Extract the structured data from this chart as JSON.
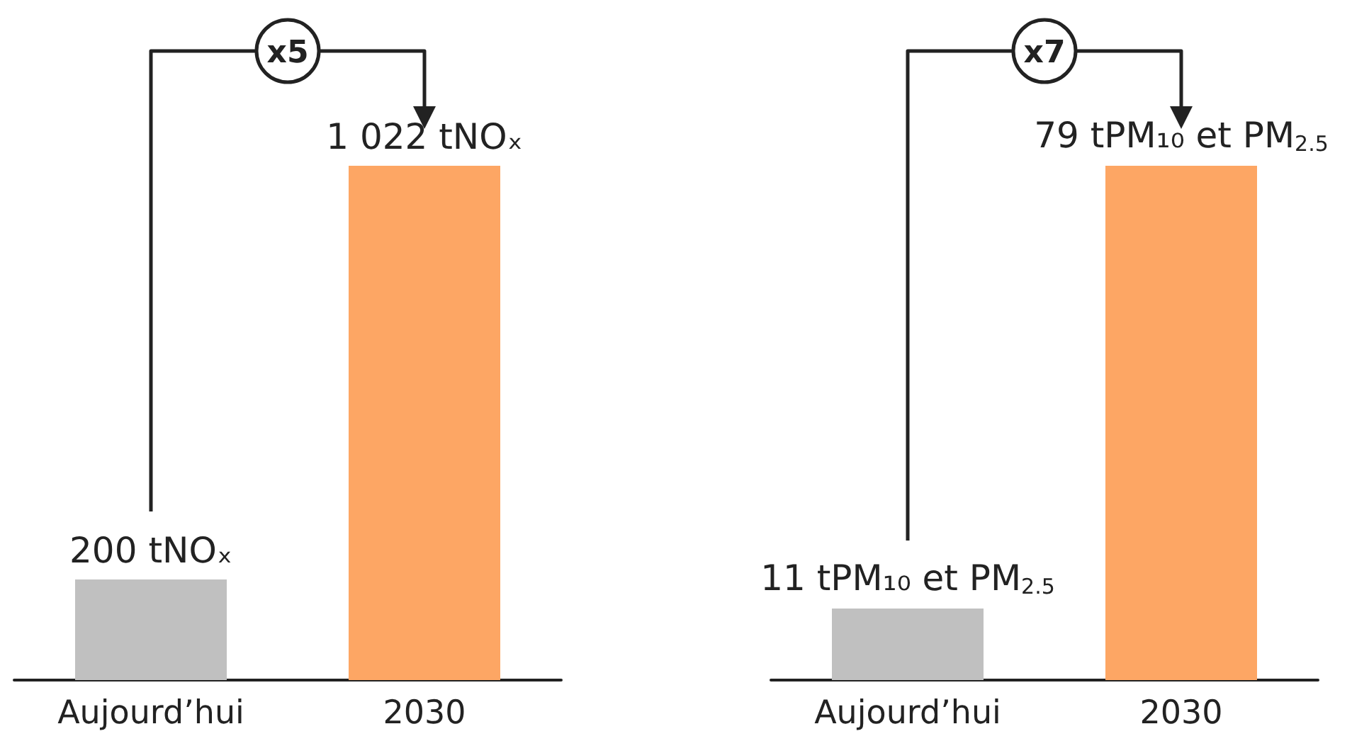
{
  "chart_data": [
    {
      "type": "bar",
      "categories": [
        "Aujourd’hui",
        "2030"
      ],
      "values": [
        200,
        1022
      ],
      "colors": [
        "#c0c0c0",
        "#fda664"
      ],
      "value_labels": [
        "200 tNOₓ",
        "1 022 tNOₓ"
      ],
      "annotations": [
        "x5"
      ]
    },
    {
      "type": "bar",
      "categories": [
        "Aujourd’hui",
        "2030"
      ],
      "values": [
        11,
        79
      ],
      "colors": [
        "#c0c0c0",
        "#fda664"
      ],
      "value_labels": [
        "11 tPM₁₀ et PM$_{2.5}$",
        "79 tPM₁₀ et PM$_{2.5}$"
      ],
      "annotations": [
        "x7"
      ]
    }
  ]
}
